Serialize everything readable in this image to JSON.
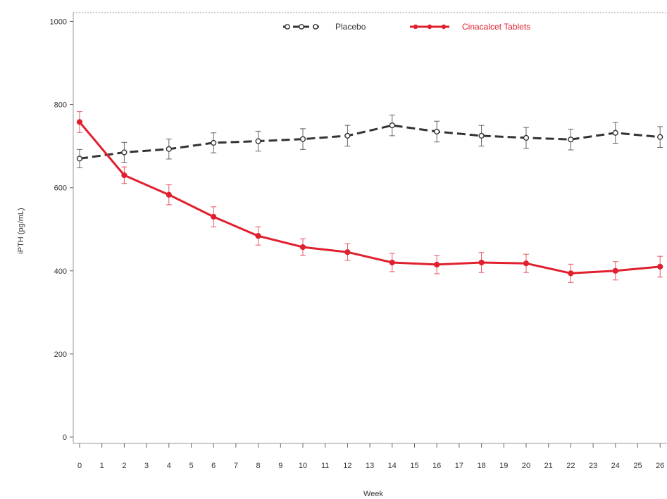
{
  "chart_data": {
    "type": "line",
    "title": "",
    "xlabel": "Week",
    "ylabel": "iPTH (pg/mL)",
    "xlim": [
      0,
      26
    ],
    "ylim": [
      0,
      1000
    ],
    "x_ticks": [
      "0",
      "1",
      "2",
      "3",
      "4",
      "5",
      "6",
      "7",
      "8",
      "9",
      "10",
      "11",
      "12",
      "13",
      "14",
      "15",
      "16",
      "17",
      "18",
      "19",
      "20",
      "21",
      "22",
      "23",
      "24",
      "25",
      "26"
    ],
    "y_ticks": [
      "0",
      "200",
      "400",
      "600",
      "800",
      "1000"
    ],
    "legend_position": "top",
    "grid": false,
    "error_bars": true,
    "series": [
      {
        "name": "Placebo",
        "color": "#333333",
        "line_style": "dashed",
        "marker": "open-circle",
        "x": [
          0,
          2,
          4,
          6,
          8,
          10,
          12,
          14,
          16,
          18,
          20,
          22,
          24,
          26
        ],
        "y": [
          670,
          685,
          693,
          708,
          712,
          717,
          725,
          750,
          735,
          725,
          720,
          716,
          732,
          722
        ],
        "error": [
          22,
          24,
          24,
          24,
          24,
          25,
          25,
          25,
          25,
          25,
          25,
          25,
          25,
          25
        ]
      },
      {
        "name": "Cinacalcet Tablets",
        "color": "#e0202e",
        "line_style": "solid",
        "marker": "filled-circle",
        "x": [
          0,
          2,
          4,
          6,
          8,
          10,
          12,
          14,
          16,
          18,
          20,
          22,
          24,
          26
        ],
        "y": [
          758,
          630,
          583,
          530,
          484,
          457,
          445,
          420,
          415,
          420,
          418,
          394,
          400,
          410
        ],
        "error": [
          25,
          20,
          24,
          24,
          22,
          20,
          20,
          22,
          22,
          24,
          22,
          22,
          22,
          25
        ]
      }
    ]
  }
}
